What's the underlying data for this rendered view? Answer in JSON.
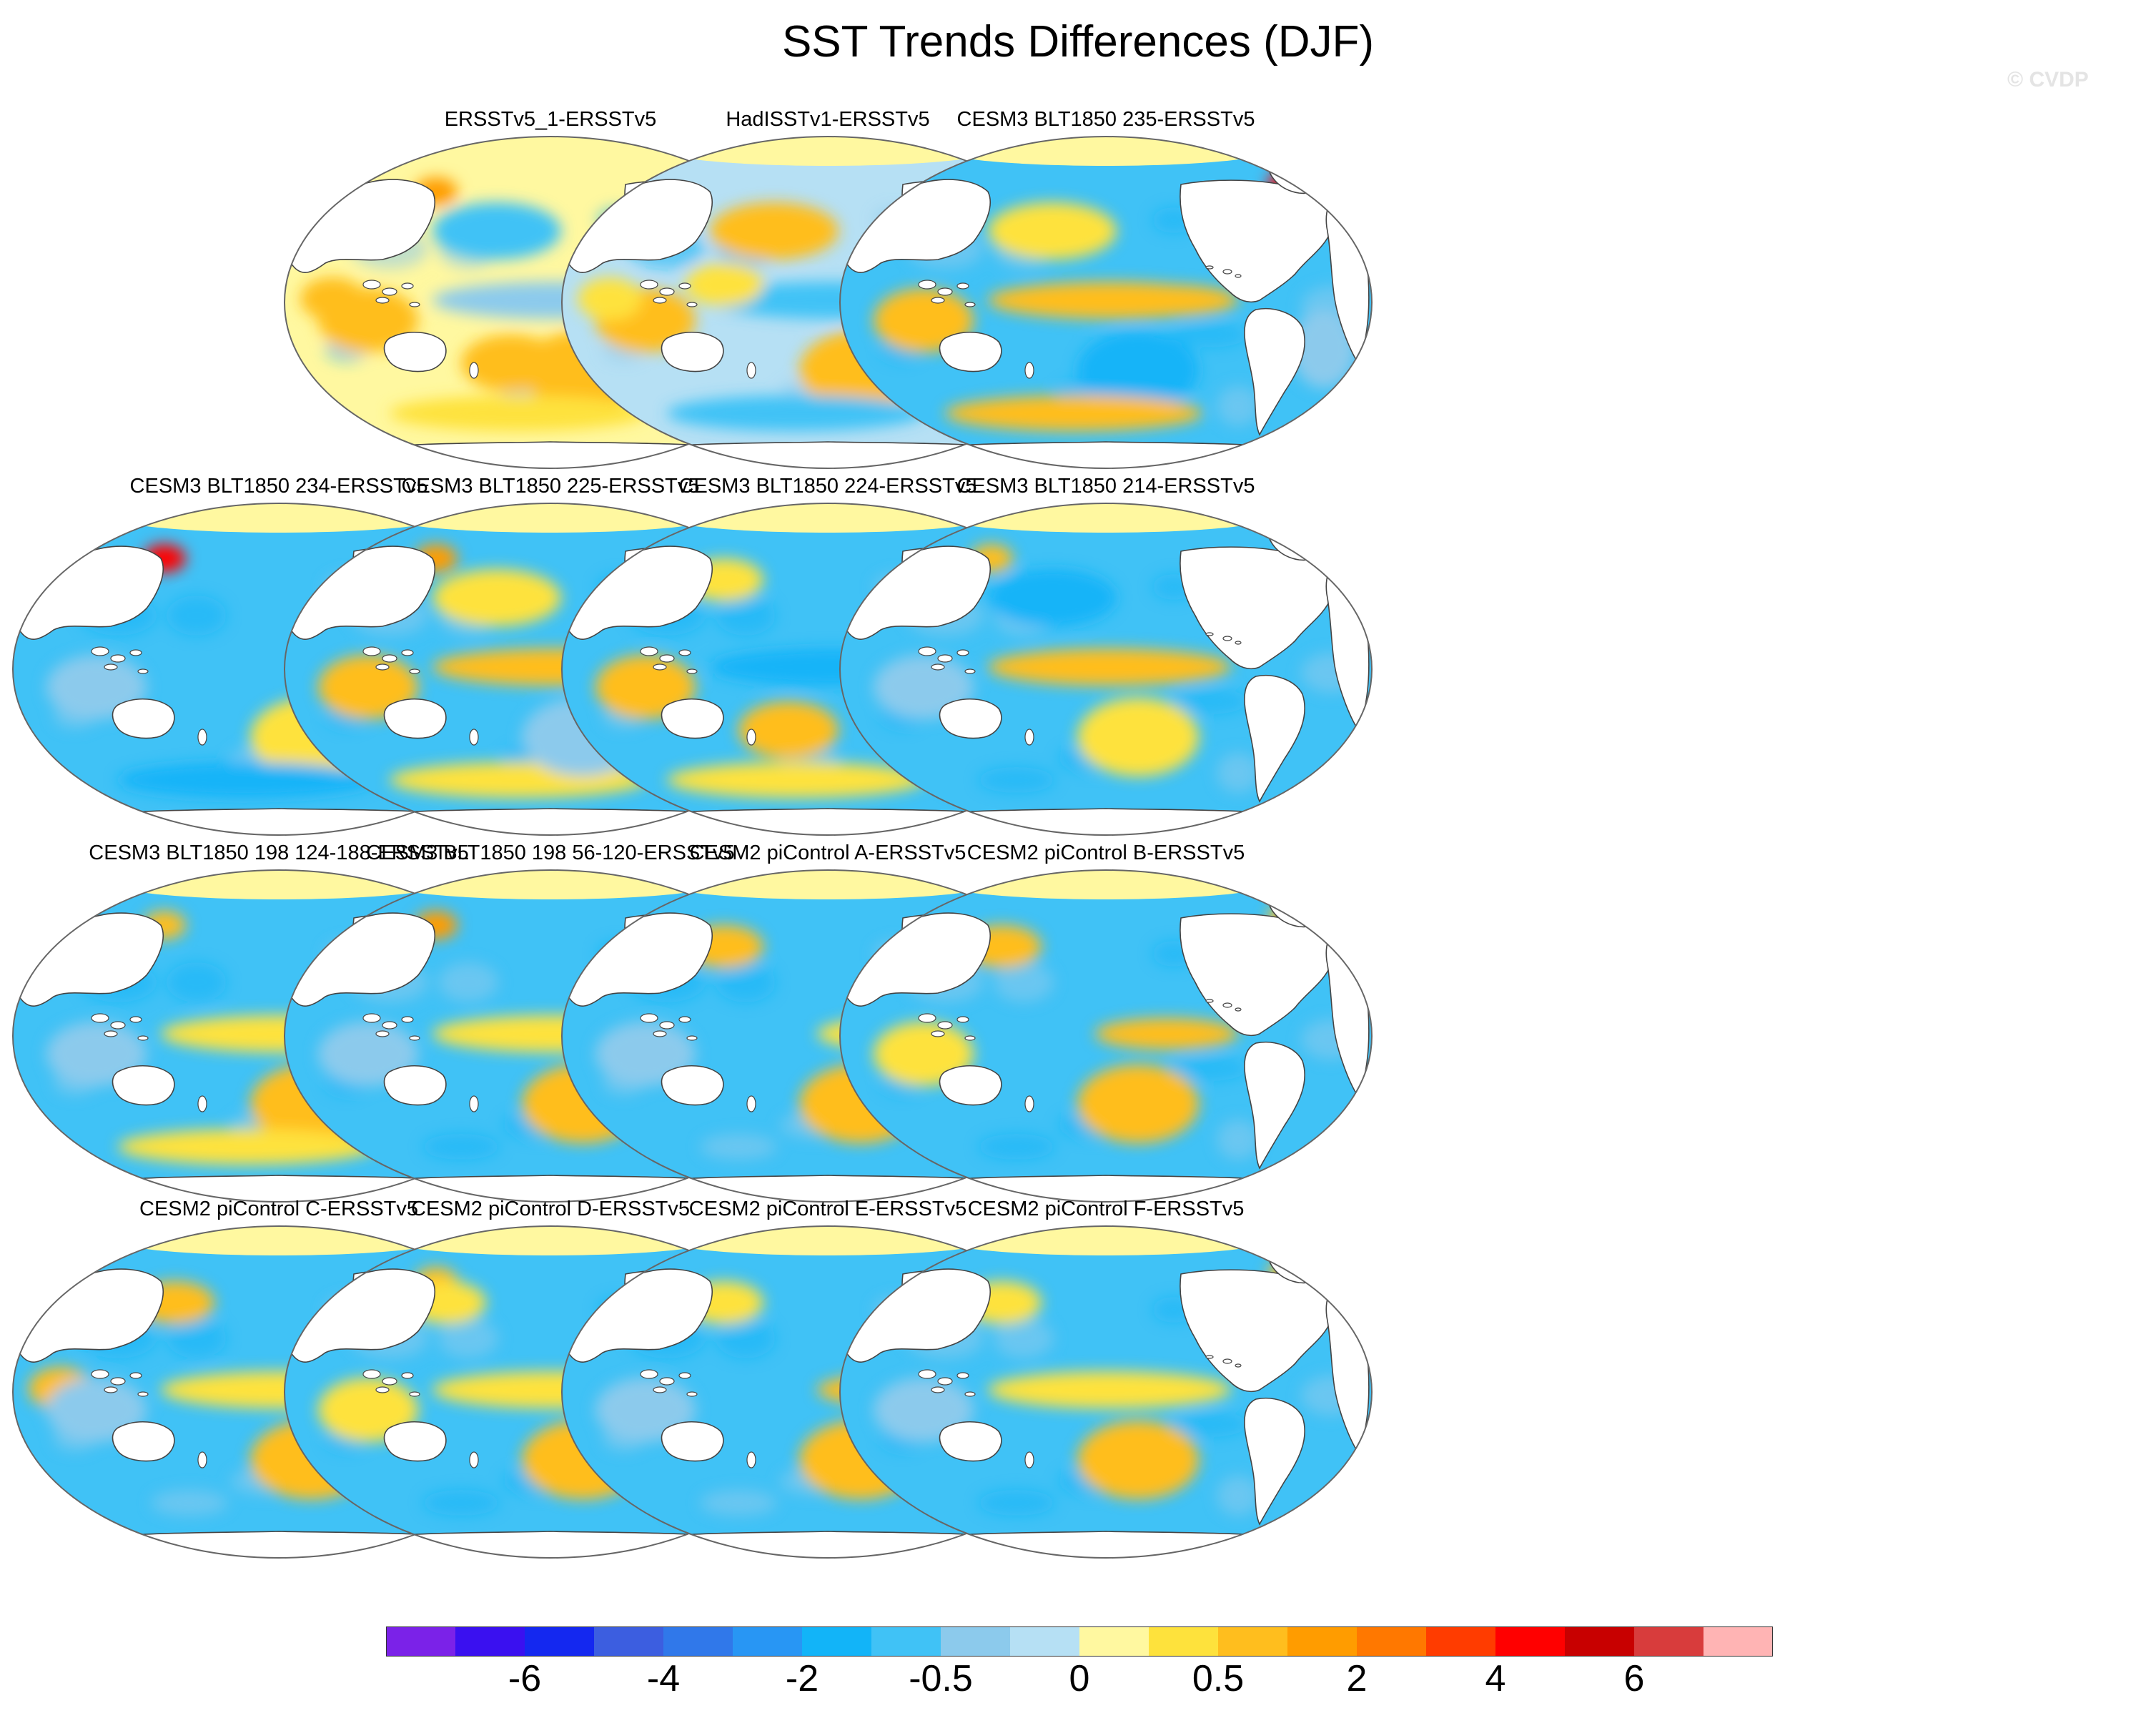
{
  "title": "SST Trends Differences (DJF)",
  "watermark": "© CVDP",
  "chart_data": {
    "type": "heatmap",
    "title": "SST Trends Differences (DJF)",
    "season": "DJF",
    "projection": "Robinson (global, Pacific-centered)",
    "panels": [
      {
        "title": "ERSSTv5_1-ERSSTv5",
        "dominant_sign": "positive"
      },
      {
        "title": "HadISSTv1-ERSSTv5",
        "dominant_sign": "mixed"
      },
      {
        "title": "CESM3 BLT1850 235-ERSSTv5",
        "dominant_sign": "mixed"
      },
      {
        "title": "CESM3 BLT1850 234-ERSSTv5",
        "dominant_sign": "negative"
      },
      {
        "title": "CESM3 BLT1850 225-ERSSTv5",
        "dominant_sign": "mixed"
      },
      {
        "title": "CESM3 BLT1850 224-ERSSTv5",
        "dominant_sign": "negative"
      },
      {
        "title": "CESM3 BLT1850 214-ERSSTv5",
        "dominant_sign": "negative"
      },
      {
        "title": "CESM3 BLT1850 198 124-188-ERSSTv5",
        "dominant_sign": "negative"
      },
      {
        "title": "CESM3 BLT1850 198 56-120-ERSSTv5",
        "dominant_sign": "negative"
      },
      {
        "title": "CESM2 piControl A-ERSSTv5",
        "dominant_sign": "negative"
      },
      {
        "title": "CESM2 piControl B-ERSSTv5",
        "dominant_sign": "negative"
      },
      {
        "title": "CESM2 piControl C-ERSSTv5",
        "dominant_sign": "negative"
      },
      {
        "title": "CESM2 piControl D-ERSSTv5",
        "dominant_sign": "negative"
      },
      {
        "title": "CESM2 piControl E-ERSSTv5",
        "dominant_sign": "negative"
      },
      {
        "title": "CESM2 piControl F-ERSSTv5",
        "dominant_sign": "negative"
      }
    ],
    "colorbar": {
      "colors": [
        "#7b22e8",
        "#3a10f0",
        "#1428f0",
        "#3c5ee0",
        "#3078ea",
        "#2896f4",
        "#12b4f8",
        "#40c2f6",
        "#8ccaec",
        "#b6e0f4",
        "#fff8a0",
        "#fee23c",
        "#ffbe1e",
        "#ff9c00",
        "#ff7800",
        "#ff3c00",
        "#ff0000",
        "#c80000",
        "#d83c3c",
        "#ffb4b4"
      ],
      "tick_labels": [
        "-6",
        "-4",
        "-2",
        "-0.5",
        "0",
        "0.5",
        "2",
        "4",
        "6"
      ],
      "tick_boundary_index": [
        2,
        4,
        6,
        8,
        10,
        12,
        14,
        16,
        18
      ]
    }
  }
}
